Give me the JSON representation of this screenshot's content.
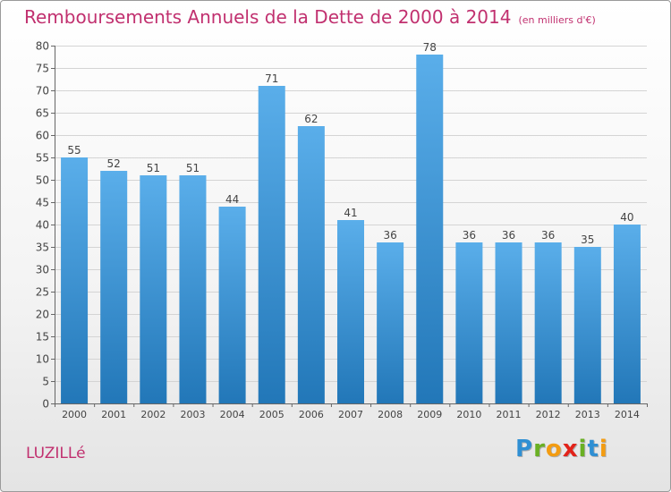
{
  "header": {
    "title": "Remboursements Annuels de la Dette de 2000 à 2014",
    "unit": "(en milliers d'€)"
  },
  "footer": {
    "commune": "LUZILLé",
    "brand_letters": [
      "P",
      "r",
      "o",
      "x",
      "i",
      "t",
      "i"
    ]
  },
  "colors": {
    "title": "#c1306f",
    "bar_top": "#5aaeea",
    "bar_bottom": "#2277b8",
    "brand": [
      "#2f8fd3",
      "#6ab023",
      "#f39c12",
      "#e2231a",
      "#6ab023",
      "#2f8fd3",
      "#f39c12"
    ]
  },
  "chart_data": {
    "type": "bar",
    "title": "Remboursements Annuels de la Dette de 2000 à 2014",
    "xlabel": "",
    "ylabel": "",
    "categories": [
      "2000",
      "2001",
      "2002",
      "2003",
      "2004",
      "2005",
      "2006",
      "2007",
      "2008",
      "2009",
      "2010",
      "2011",
      "2012",
      "2013",
      "2014"
    ],
    "values": [
      55,
      52,
      51,
      51,
      44,
      71,
      62,
      41,
      36,
      78,
      36,
      36,
      36,
      35,
      40
    ],
    "ylim": [
      0,
      80
    ],
    "yticks": [
      0,
      5,
      10,
      15,
      20,
      25,
      30,
      35,
      40,
      45,
      50,
      55,
      60,
      65,
      70,
      75,
      80
    ],
    "grid": true,
    "legend": "none"
  }
}
